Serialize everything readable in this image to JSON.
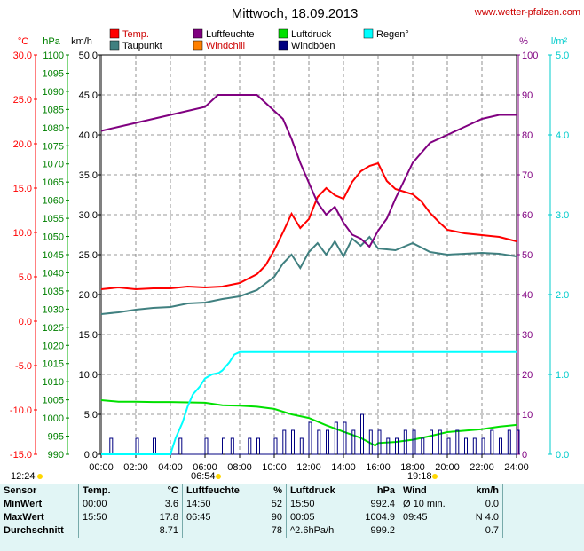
{
  "header": {
    "title": "Mittwoch, 18.09.2013",
    "site": "www.wetter-pfalzen.com"
  },
  "sun": {
    "sunrise": "06:54",
    "sunset": "19:18",
    "moonrise": "12:24"
  },
  "units": {
    "temp": "°C",
    "pressure": "hPa",
    "wind": "km/h",
    "humidity": "%",
    "rain": "l/m²"
  },
  "legend": [
    {
      "name": "Temp.",
      "color": "#ff0000"
    },
    {
      "name": "Taupunkt",
      "color": "#408080"
    },
    {
      "name": "Luftfeuchte",
      "color": "#800080"
    },
    {
      "name": "Windchill",
      "color": "#ff8000"
    },
    {
      "name": "Luftdruck",
      "color": "#00e000"
    },
    {
      "name": "Windböen",
      "color": "#000080"
    },
    {
      "name": "Regen°",
      "color": "#00ffff"
    }
  ],
  "axes": {
    "temp_ticks": [
      "30.0",
      "25.0",
      "20.0",
      "15.0",
      "10.0",
      "5.0",
      "0.0",
      "-5.0",
      "-10.0",
      "-15.0"
    ],
    "pressure_ticks": [
      "1100",
      "1095",
      "1090",
      "1085",
      "1080",
      "1075",
      "1070",
      "1065",
      "1060",
      "1055",
      "1050",
      "1045",
      "1040",
      "1035",
      "1030",
      "1025",
      "1020",
      "1015",
      "1010",
      "1005",
      "1000",
      "995",
      "990"
    ],
    "wind_ticks": [
      "50.0",
      "45.0",
      "40.0",
      "35.0",
      "30.0",
      "25.0",
      "20.0",
      "15.0",
      "10.0",
      "5.0",
      "0.0"
    ],
    "humidity_ticks": [
      "100",
      "90",
      "80",
      "70",
      "60",
      "50",
      "40",
      "30",
      "20",
      "10",
      "0"
    ],
    "rain_ticks": [
      "5.0",
      "4.0",
      "3.0",
      "2.0",
      "1.0",
      "0.0"
    ],
    "time_ticks": [
      "00:00",
      "02:00",
      "04:00",
      "06:00",
      "08:00",
      "10:00",
      "12:00",
      "14:00",
      "16:00",
      "18:00",
      "20:00",
      "22:00",
      "24:00"
    ]
  },
  "chart_data": {
    "type": "line",
    "title": "Mittwoch, 18.09.2013",
    "x_range": [
      "00:00",
      "24:00"
    ],
    "ylim_temp": [
      -15,
      30
    ],
    "ylim_pressure": [
      990,
      1100
    ],
    "ylim_wind": [
      0,
      50
    ],
    "ylim_humidity": [
      0,
      100
    ],
    "ylim_rain": [
      0,
      5
    ],
    "grid": true,
    "series": [
      {
        "name": "Temp.",
        "unit": "°C",
        "color": "#ff0000",
        "x": [
          0,
          1,
          2,
          3,
          4,
          5,
          6,
          7,
          8,
          8.5,
          9,
          9.5,
          10,
          10.5,
          11,
          11.5,
          12,
          12.5,
          13,
          13.5,
          14,
          14.5,
          15,
          15.5,
          16,
          16.5,
          17,
          17.5,
          18,
          18.5,
          19,
          19.5,
          20,
          21,
          22,
          23,
          24
        ],
        "y": [
          3.6,
          3.8,
          3.6,
          3.7,
          3.7,
          3.9,
          3.8,
          3.9,
          4.3,
          4.8,
          5.3,
          6.3,
          8.0,
          10.0,
          12.1,
          10.5,
          11.5,
          14.0,
          15.0,
          14.2,
          13.8,
          15.7,
          16.9,
          17.5,
          17.8,
          15.8,
          14.9,
          14.6,
          14.3,
          13.5,
          12.2,
          11.2,
          10.3,
          9.9,
          9.7,
          9.5,
          9.0
        ]
      },
      {
        "name": "Taupunkt",
        "unit": "°C",
        "color": "#408080",
        "x": [
          0,
          1,
          2,
          3,
          4,
          5,
          6,
          7,
          8,
          9,
          10,
          10.5,
          11,
          11.5,
          12,
          12.5,
          13,
          13.5,
          14,
          14.5,
          15,
          15.5,
          16,
          17,
          18,
          19,
          20,
          21,
          22,
          23,
          24
        ],
        "y": [
          0.8,
          1.0,
          1.3,
          1.5,
          1.6,
          2.0,
          2.1,
          2.5,
          2.8,
          3.5,
          5.0,
          6.5,
          7.5,
          6.0,
          7.8,
          8.8,
          7.5,
          9.0,
          7.3,
          9.3,
          8.5,
          9.5,
          8.2,
          8.0,
          8.8,
          7.8,
          7.5,
          7.6,
          7.7,
          7.6,
          7.3
        ]
      },
      {
        "name": "Luftfeuchte",
        "unit": "%",
        "color": "#800080",
        "x": [
          0,
          1,
          2,
          3,
          4,
          5,
          6,
          6.75,
          7,
          8,
          9,
          10,
          10.5,
          11,
          11.5,
          12,
          12.5,
          13,
          13.5,
          14,
          14.5,
          15,
          15.5,
          16,
          16.5,
          17,
          18,
          19,
          20,
          21,
          22,
          23,
          24
        ],
        "y": [
          81,
          82,
          83,
          84,
          85,
          86,
          87,
          90,
          90,
          90,
          90,
          86,
          84,
          79,
          73,
          68,
          63,
          60,
          62,
          58,
          55,
          54,
          52,
          56,
          59,
          64,
          73,
          78,
          80,
          82,
          84,
          85,
          85
        ]
      },
      {
        "name": "Luftdruck",
        "unit": "hPa",
        "color": "#00e000",
        "x": [
          0,
          1,
          2,
          3,
          4,
          5,
          6,
          7,
          8,
          9,
          10,
          11,
          12,
          13,
          14,
          15,
          15.83,
          16,
          17,
          18,
          19,
          20,
          21,
          22,
          23,
          24
        ],
        "y": [
          1004.9,
          1004.5,
          1004.5,
          1004.4,
          1004.4,
          1004.3,
          1004.2,
          1003.5,
          1003.4,
          1003.1,
          1002.5,
          1001.0,
          1000.0,
          998.0,
          996.2,
          994.5,
          992.4,
          993.1,
          993.4,
          994.0,
          995.0,
          996.1,
          996.5,
          996.9,
          997.6,
          998.1
        ]
      },
      {
        "name": "Windböen",
        "unit": "km/h",
        "color": "#000080",
        "x": [
          0,
          0.5,
          1,
          1.5,
          2,
          2.5,
          3,
          3.5,
          4,
          4.5,
          5,
          5.5,
          6,
          6.5,
          7,
          7.5,
          8,
          8.5,
          9,
          9.5,
          10,
          10.5,
          11,
          11.5,
          12,
          12.5,
          13,
          13.5,
          14,
          14.5,
          15,
          15.5,
          16,
          16.5,
          17,
          17.5,
          18,
          18.5,
          19,
          19.5,
          20,
          20.5,
          21,
          21.5,
          22,
          22.5,
          23,
          23.5,
          24
        ],
        "y": [
          0,
          2,
          0,
          0,
          2,
          0,
          2,
          0,
          0,
          2,
          0,
          0,
          2,
          0,
          2,
          2,
          0,
          2,
          2,
          0,
          2,
          3,
          3,
          2,
          4,
          3,
          3,
          4,
          4,
          3,
          5,
          3,
          3,
          2,
          2,
          3,
          3,
          2,
          3,
          3,
          2,
          3,
          2,
          2,
          2,
          3,
          2,
          3,
          3
        ]
      },
      {
        "name": "Regen°",
        "unit": "l/m²",
        "color": "#00ffff",
        "x": [
          0,
          4,
          4.3,
          4.7,
          5,
          5.3,
          5.7,
          6,
          6.4,
          6.8,
          7,
          7.4,
          7.7,
          8,
          10,
          12,
          14,
          16,
          18,
          20,
          22,
          24
        ],
        "y": [
          0,
          0,
          0.2,
          0.4,
          0.6,
          0.75,
          0.85,
          0.95,
          1.0,
          1.02,
          1.05,
          1.15,
          1.25,
          1.28,
          1.28,
          1.28,
          1.28,
          1.28,
          1.28,
          1.28,
          1.28,
          1.28
        ]
      }
    ]
  },
  "stats": {
    "head": {
      "sensor": "Sensor",
      "temp": "Temp.",
      "temp_unit": "°C",
      "hum": "Luftfeuchte",
      "hum_unit": "%",
      "press": "Luftdruck",
      "press_unit": "hPa",
      "wind": "Wind",
      "wind_unit": "km/h"
    },
    "rows": [
      {
        "label": "MinWert",
        "t_time": "00:00",
        "t_val": "3.6",
        "h_time": "14:50",
        "h_val": "52",
        "p_time": "15:50",
        "p_val": "992.4",
        "w_time": "Ø 10 min.",
        "w_val": "0.0"
      },
      {
        "label": "MaxWert",
        "t_time": "15:50",
        "t_val": "17.8",
        "h_time": "06:45",
        "h_val": "90",
        "p_time": "00:05",
        "p_val": "1004.9",
        "w_time": "09:45",
        "w_val": "N 4.0"
      },
      {
        "label": "Durchschnitt",
        "t_time": "",
        "t_val": "8.71",
        "h_time": "",
        "h_val": "78",
        "p_time": "^2.6hPa/h",
        "p_val": "999.2",
        "w_time": "",
        "w_val": "0.7"
      }
    ]
  }
}
